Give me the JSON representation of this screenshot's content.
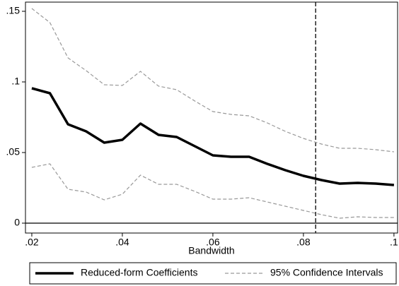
{
  "chart_data": {
    "type": "line",
    "x": [
      0.02,
      0.024,
      0.028,
      0.032,
      0.036,
      0.04,
      0.044,
      0.048,
      0.052,
      0.056,
      0.06,
      0.064,
      0.068,
      0.072,
      0.076,
      0.08,
      0.084,
      0.088,
      0.092,
      0.096,
      0.1
    ],
    "series": [
      {
        "name": "Reduced-form Coefficients",
        "color": "#000000",
        "values": [
          0.0955,
          0.092,
          0.07,
          0.065,
          0.057,
          0.059,
          0.0705,
          0.0625,
          0.061,
          0.0545,
          0.048,
          0.047,
          0.047,
          0.042,
          0.0375,
          0.0335,
          0.0305,
          0.028,
          0.0285,
          0.028,
          0.027
        ]
      },
      {
        "name": "95% Confidence Intervals",
        "color": "#999999",
        "dashed": true,
        "upper": [
          0.152,
          0.142,
          0.117,
          0.108,
          0.098,
          0.0975,
          0.1075,
          0.097,
          0.0945,
          0.0865,
          0.079,
          0.077,
          0.076,
          0.071,
          0.065,
          0.06,
          0.056,
          0.053,
          0.053,
          0.052,
          0.0505
        ],
        "lower": [
          0.0395,
          0.042,
          0.024,
          0.022,
          0.0165,
          0.0205,
          0.034,
          0.0275,
          0.0275,
          0.0225,
          0.017,
          0.017,
          0.018,
          0.015,
          0.012,
          0.009,
          0.006,
          0.0035,
          0.0045,
          0.004,
          0.004
        ]
      }
    ],
    "xlabel": "Bandwidth",
    "xlim": [
      0.0186,
      0.1008
    ],
    "ylim": [
      -0.007,
      0.1565
    ],
    "xticks": [
      {
        "value": 0.02,
        "label": ".02"
      },
      {
        "value": 0.04,
        "label": ".04"
      },
      {
        "value": 0.06,
        "label": ".06"
      },
      {
        "value": 0.08,
        "label": ".08"
      },
      {
        "value": 0.1,
        "label": ".1"
      }
    ],
    "yticks": [
      0,
      {
        "value": 0.05,
        "label": ".05"
      },
      {
        "value": 0.1,
        "label": ".1"
      },
      {
        "value": 0.15,
        "label": ".15"
      }
    ],
    "vline": 0.0827,
    "hline": 0,
    "legend": "bottom"
  }
}
